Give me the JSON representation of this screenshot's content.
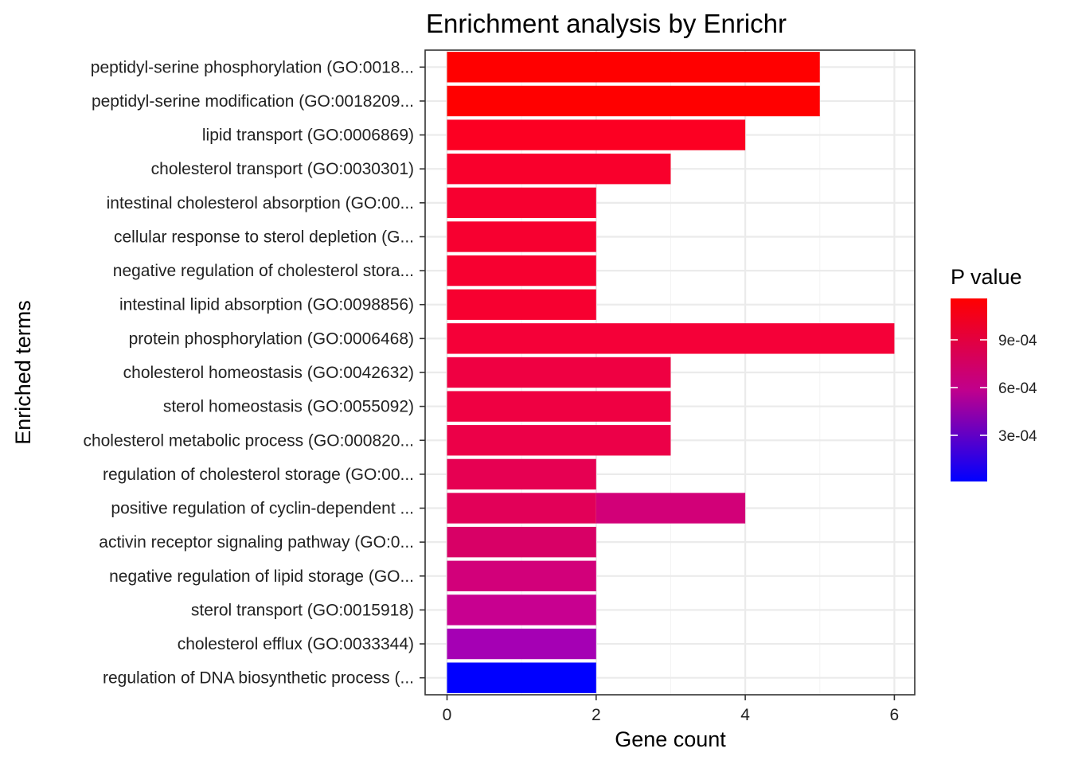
{
  "chart_data": {
    "type": "bar",
    "orientation": "horizontal",
    "title": "Enrichment analysis by Enrichr",
    "xlabel": "Gene count",
    "ylabel": "Enriched terms",
    "xlim": [
      0,
      6.3
    ],
    "xticks": [
      0,
      2,
      4,
      6
    ],
    "grid": true,
    "legend": {
      "title": "P value",
      "placement": "right",
      "type": "colorbar",
      "range": [
        1e-05,
        0.00116
      ],
      "ticks": [
        {
          "value": 0.0003,
          "label": "3e-04"
        },
        {
          "value": 0.0006,
          "label": "6e-04"
        },
        {
          "value": 0.0009,
          "label": "9e-04"
        }
      ],
      "low_color": "#ff0000",
      "mid_color": "#c0008c",
      "high_color": "#0000ff"
    },
    "bars": [
      {
        "label": "peptidyl-serine phosphorylation (GO:0018...",
        "value": 5,
        "color": "#ff0000"
      },
      {
        "label": "peptidyl-serine modification (GO:0018209...",
        "value": 5,
        "color": "#ff0000"
      },
      {
        "label": "lipid transport (GO:0006869)",
        "value": 4,
        "color": "#fc0022"
      },
      {
        "label": "cholesterol transport (GO:0030301)",
        "value": 3,
        "color": "#f9002c"
      },
      {
        "label": "intestinal cholesterol absorption (GO:00...",
        "value": 2,
        "color": "#f70030"
      },
      {
        "label": "cellular response to sterol depletion (G...",
        "value": 2,
        "color": "#f70030"
      },
      {
        "label": "negative regulation of cholesterol stora...",
        "value": 2,
        "color": "#f70030"
      },
      {
        "label": "intestinal lipid absorption (GO:0098856)",
        "value": 2,
        "color": "#f70030"
      },
      {
        "label": "protein phosphorylation (GO:0006468)",
        "value": 6,
        "color": "#f50038"
      },
      {
        "label": "cholesterol homeostasis (GO:0042632)",
        "value": 3,
        "color": "#ef0042"
      },
      {
        "label": "sterol homeostasis (GO:0055092)",
        "value": 3,
        "color": "#ef0042"
      },
      {
        "label": "cholesterol metabolic process (GO:000820...",
        "value": 3,
        "color": "#ec0048"
      },
      {
        "label": "regulation of cholesterol storage (GO:00...",
        "value": 2,
        "color": "#e60052"
      },
      {
        "label": "positive regulation of cyclin-dependent ...",
        "value": 4,
        "color": "#e20058",
        "segments": [
          {
            "value": 2,
            "color": "#e20058"
          },
          {
            "value": 2,
            "color": "#d20078"
          }
        ]
      },
      {
        "label": "activin receptor signaling pathway (GO:0...",
        "value": 2,
        "color": "#d80066"
      },
      {
        "label": "negative regulation of lipid storage (GO...",
        "value": 2,
        "color": "#d2007a"
      },
      {
        "label": "sterol transport (GO:0015918)",
        "value": 2,
        "color": "#c80090"
      },
      {
        "label": "cholesterol efflux (GO:0033344)",
        "value": 2,
        "color": "#a500b4"
      },
      {
        "label": "regulation of DNA biosynthetic process (...",
        "value": 2,
        "color": "#0000ff"
      }
    ]
  }
}
